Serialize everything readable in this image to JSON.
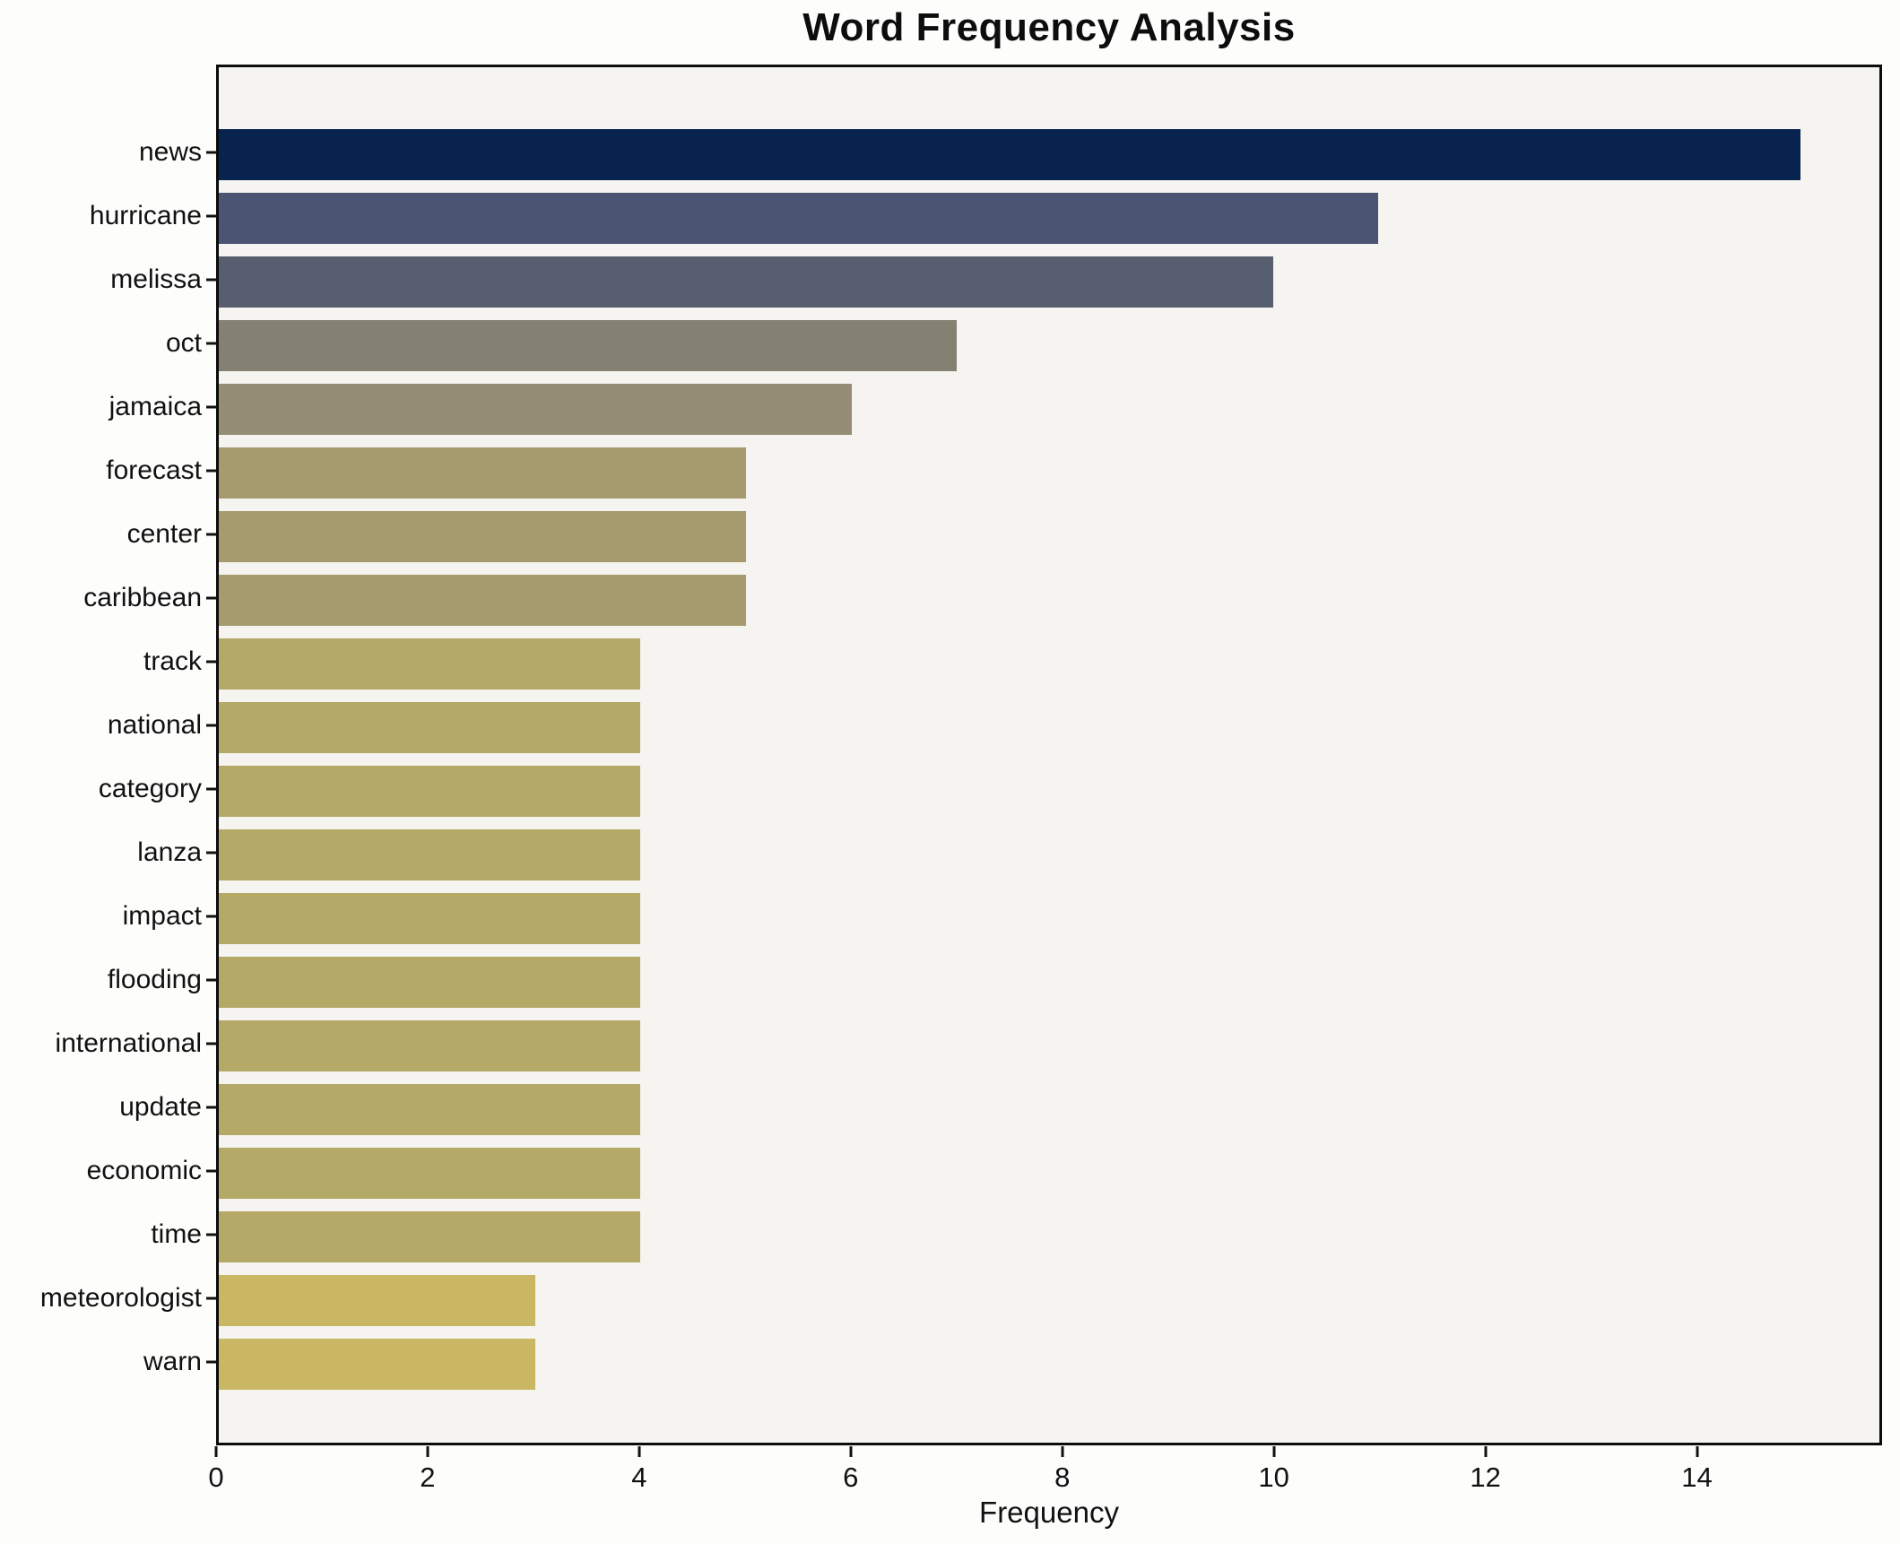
{
  "title": "Word Frequency Analysis",
  "chart_data": {
    "type": "bar",
    "orientation": "horizontal",
    "title": "Word Frequency Analysis",
    "xlabel": "Frequency",
    "ylabel": "",
    "categories": [
      "news",
      "hurricane",
      "melissa",
      "oct",
      "jamaica",
      "forecast",
      "center",
      "caribbean",
      "track",
      "national",
      "category",
      "lanza",
      "impact",
      "flooding",
      "international",
      "update",
      "economic",
      "time",
      "meteorologist",
      "warn"
    ],
    "values": [
      15,
      11,
      10,
      7,
      6,
      5,
      5,
      5,
      4,
      4,
      4,
      4,
      4,
      4,
      4,
      4,
      4,
      4,
      3,
      3
    ],
    "bar_colors": [
      "#08234d",
      "#4b5472",
      "#575e70",
      "#848172",
      "#958e74",
      "#a59b6f",
      "#a59b6f",
      "#a59b6f",
      "#b4a967",
      "#b4a967",
      "#b4a967",
      "#b4a967",
      "#b4a967",
      "#b4a967",
      "#b4a967",
      "#b4a967",
      "#b4a967",
      "#b4a967",
      "#c9b763",
      "#c9b763"
    ],
    "xticks": [
      0,
      2,
      4,
      6,
      8,
      10,
      12,
      14
    ],
    "xlim": [
      0,
      15.75
    ],
    "grid": false,
    "legend": null,
    "plot_background": "#f5f4f1",
    "figure_background": "#fdfdfc",
    "spine_color": "#0c0c0c"
  }
}
